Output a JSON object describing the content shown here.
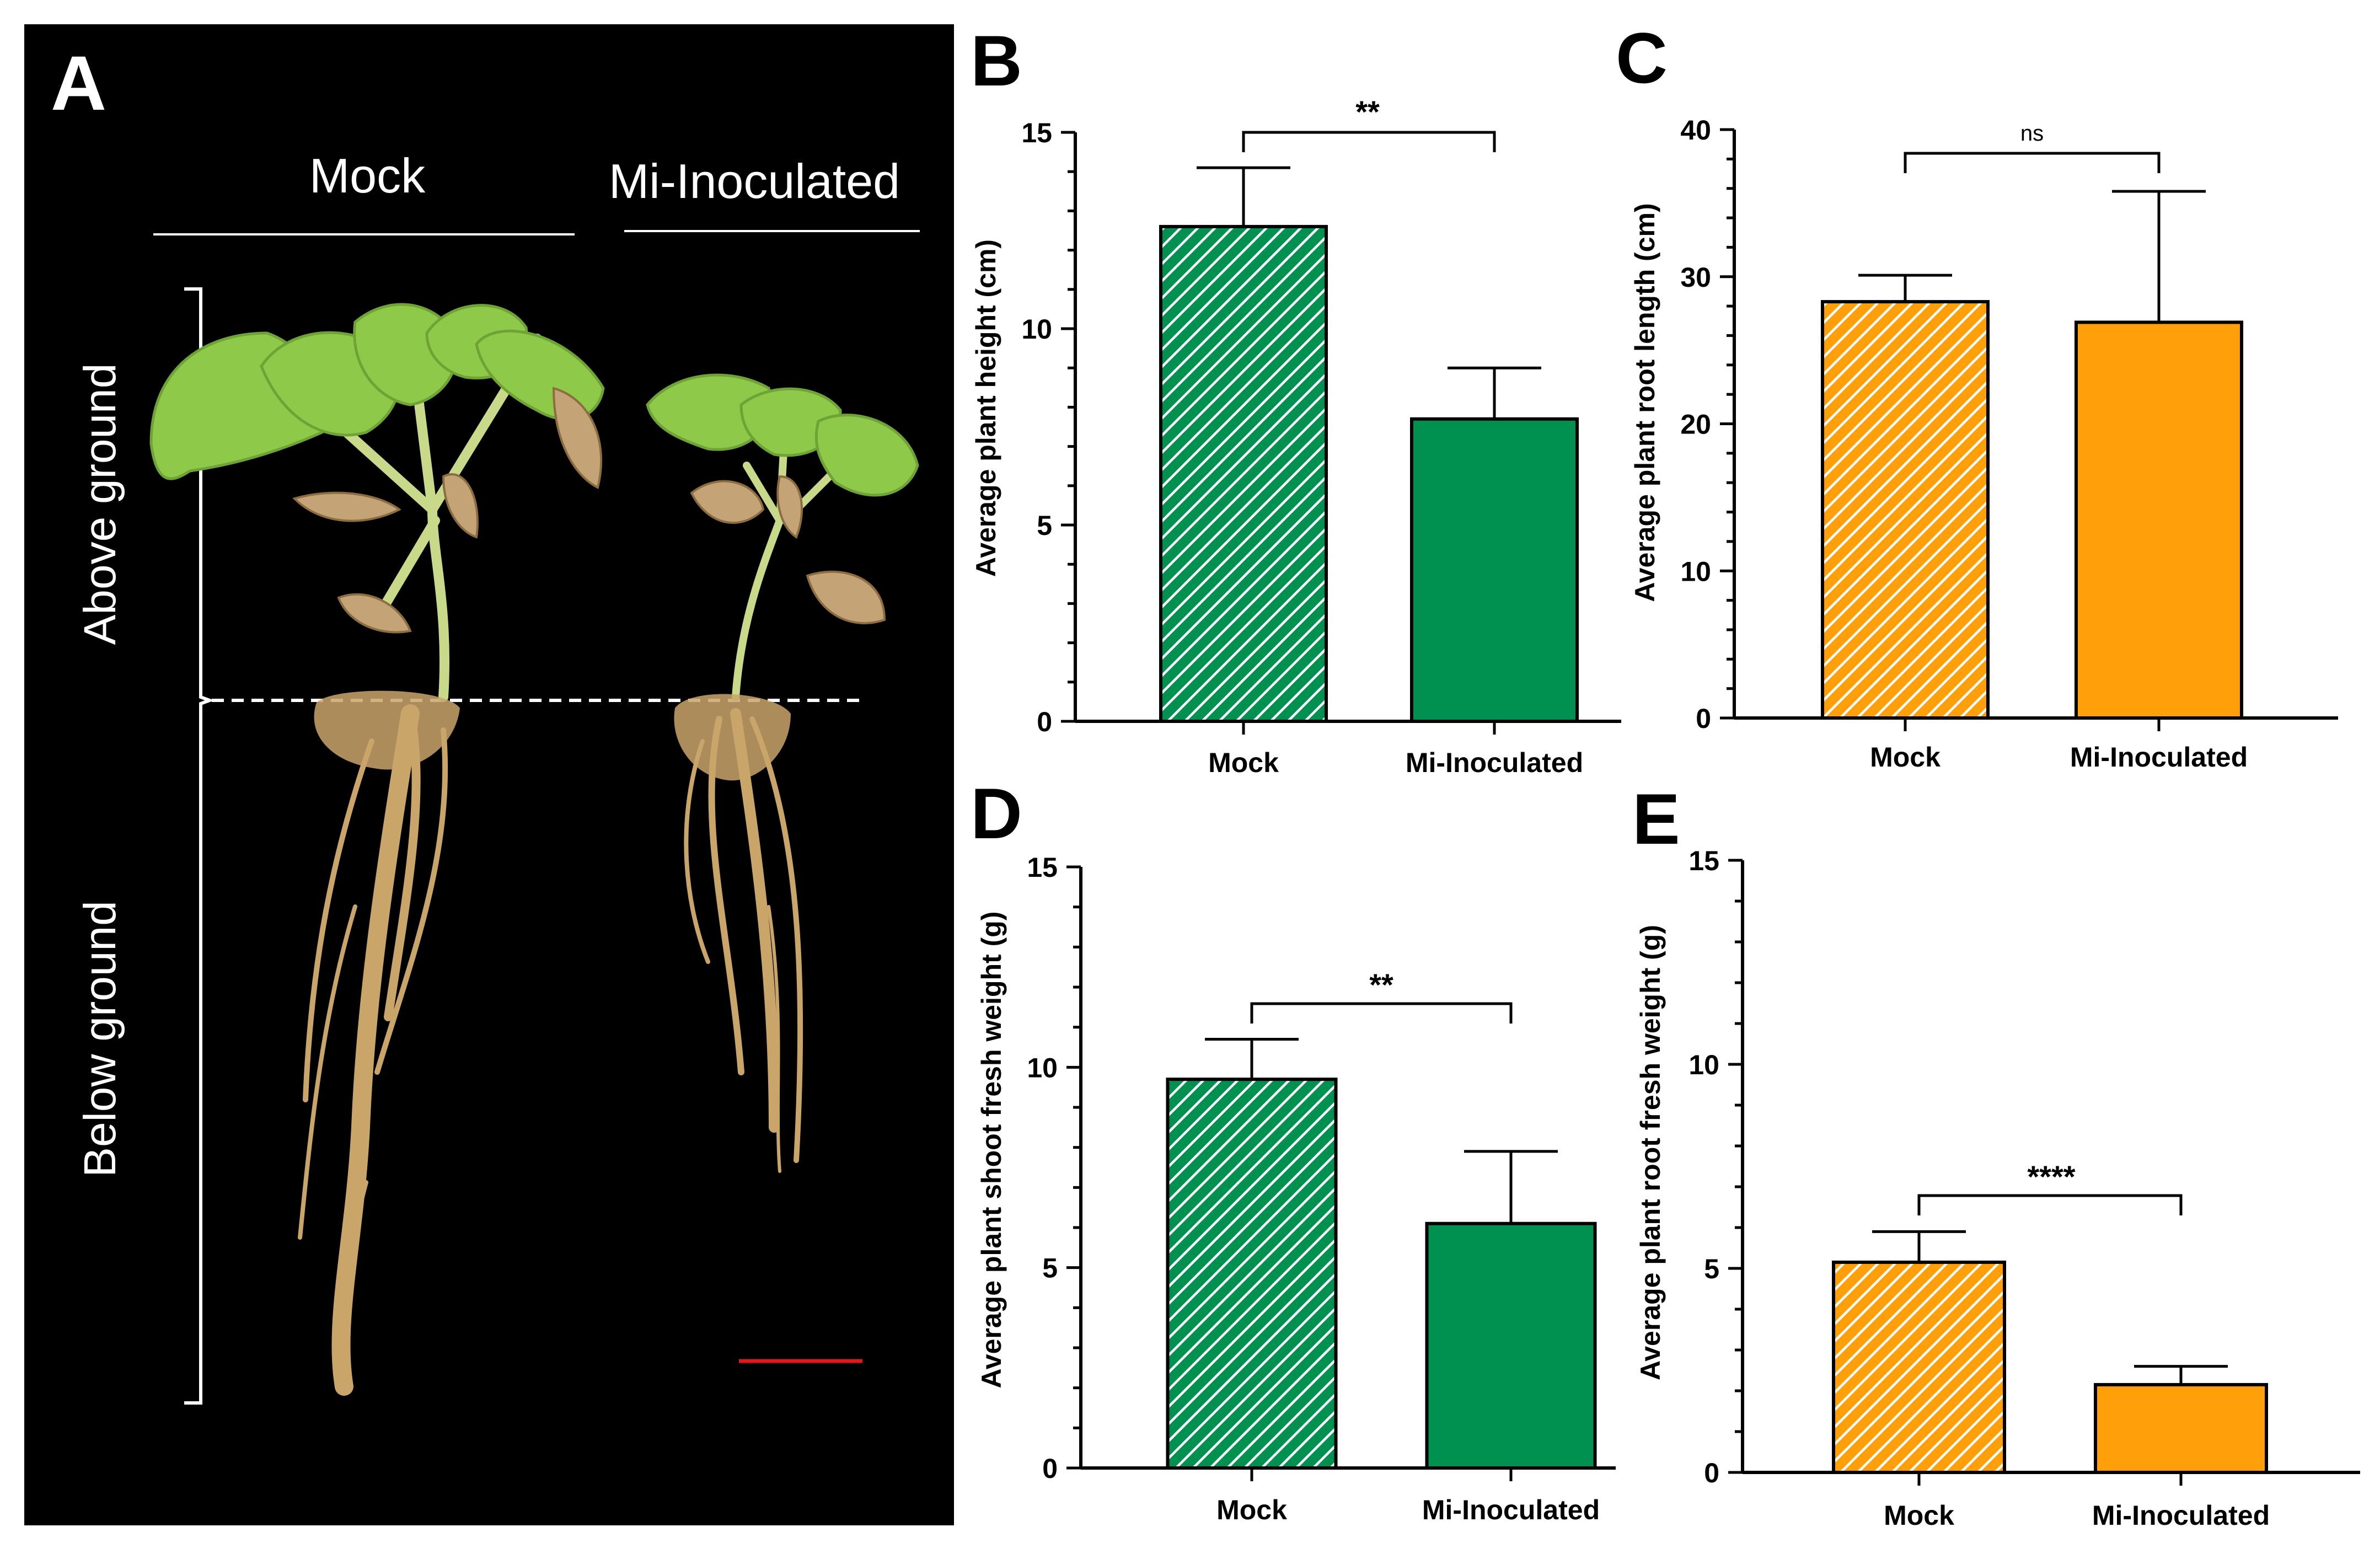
{
  "photo_panel": {
    "letter": "A",
    "col_mock": "Mock",
    "col_inoc": "Mi-Inoculated",
    "label_above": "Above ground",
    "label_below": "Below ground",
    "leaf_color": "#8fc94a",
    "root_color": "#c9a56a",
    "scale_bar_color": "#e01818"
  },
  "chart_data": [
    {
      "panel": "B",
      "type": "bar",
      "categories": [
        "Mock",
        "Mi-Inoculated"
      ],
      "values": [
        12.6,
        7.7
      ],
      "errors": [
        1.5,
        1.3
      ],
      "ylabel": "Average plant height (cm)",
      "ylim": [
        0,
        15
      ],
      "ticks": [
        0,
        5,
        10,
        15
      ],
      "ticklabels": [
        "0",
        "5",
        "10",
        "15"
      ],
      "significance": "**",
      "color": "#009150",
      "fills": [
        "hatched",
        "solid"
      ]
    },
    {
      "panel": "C",
      "type": "bar",
      "categories": [
        "Mock",
        "Mi-Inoculated"
      ],
      "values": [
        28.3,
        26.9
      ],
      "errors": [
        1.8,
        8.9
      ],
      "ylabel": "Average plant root length (cm)",
      "ylim": [
        0,
        40
      ],
      "ticks": [
        0,
        10,
        20,
        30,
        40
      ],
      "ticklabels": [
        "0",
        "10",
        "20",
        "30",
        "40"
      ],
      "significance": "ns",
      "color": "#ff9f0a",
      "fills": [
        "hatched",
        "solid"
      ]
    },
    {
      "panel": "D",
      "type": "bar",
      "categories": [
        "Mock",
        "Mi-Inoculated"
      ],
      "values": [
        9.7,
        6.1
      ],
      "errors": [
        1.0,
        1.8
      ],
      "ylabel": "Average plant shoot fresh weight (g)",
      "ylim": [
        0,
        15
      ],
      "ticks": [
        0,
        5,
        10,
        15
      ],
      "ticklabels": [
        "0",
        "5",
        "10",
        "15"
      ],
      "significance": "**",
      "color": "#009150",
      "fills": [
        "hatched",
        "solid"
      ]
    },
    {
      "panel": "E",
      "type": "bar",
      "categories": [
        "Mock",
        "Mi-Inoculated"
      ],
      "values": [
        5.15,
        2.15
      ],
      "errors": [
        0.75,
        0.45
      ],
      "ylabel": "Average plant root fresh weight (g)",
      "ylim": [
        0,
        15
      ],
      "ticks": [
        0,
        5,
        10,
        15
      ],
      "ticklabels": [
        "0",
        "5",
        "10",
        "15"
      ],
      "significance": "****",
      "color": "#ff9f0a",
      "fills": [
        "hatched",
        "solid"
      ]
    }
  ]
}
